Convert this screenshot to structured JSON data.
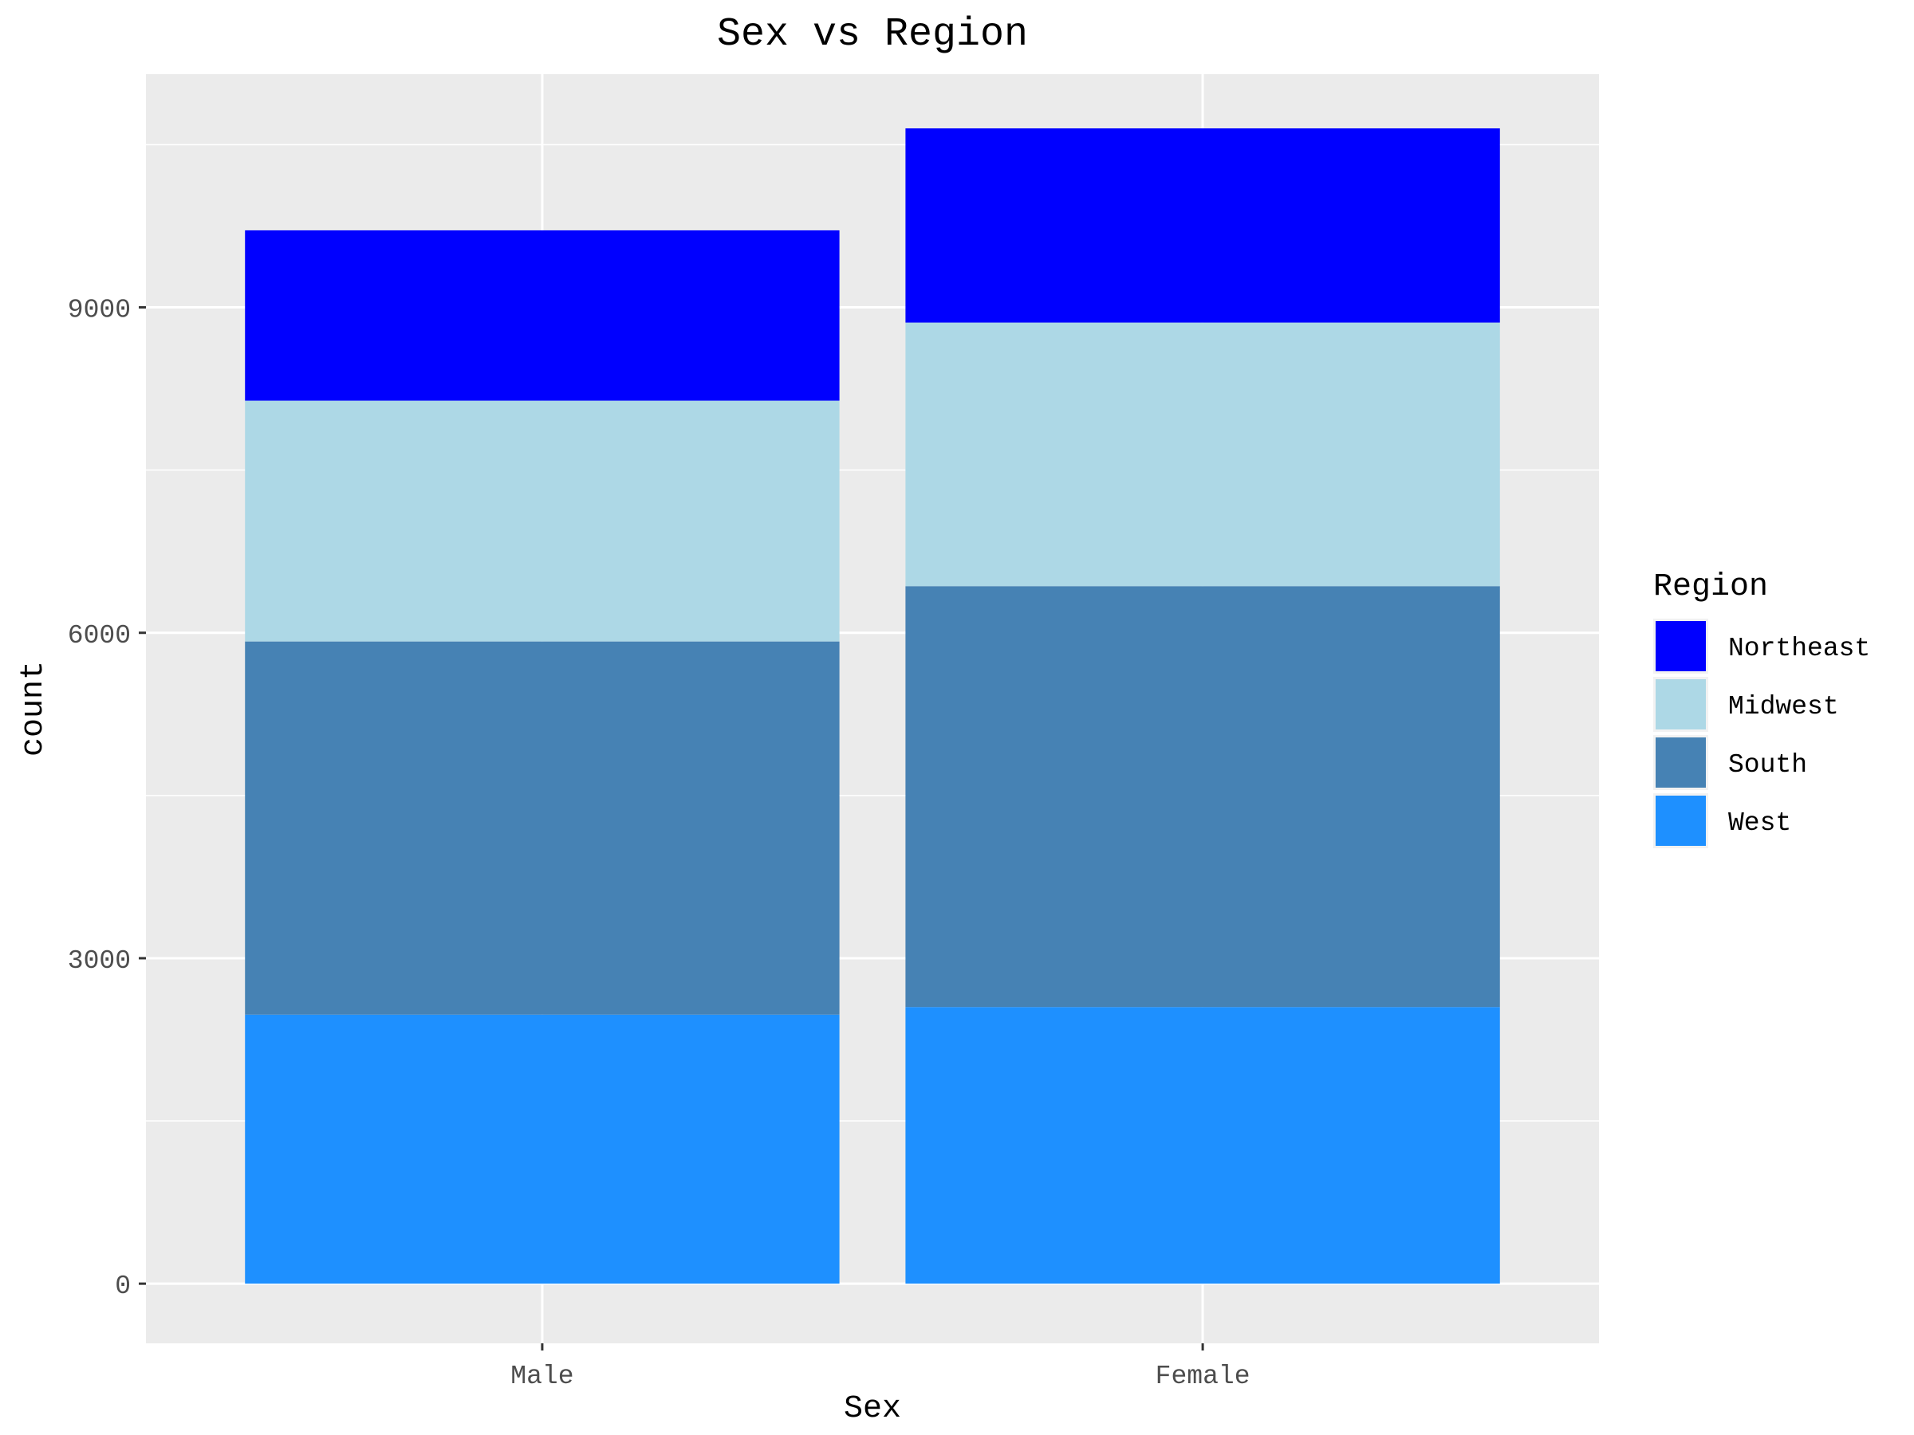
{
  "chart_data": {
    "type": "bar",
    "stacked": true,
    "title": "Sex vs Region",
    "xlabel": "Sex",
    "ylabel": "count",
    "categories": [
      "Male",
      "Female"
    ],
    "ylim": [
      -550,
      11150
    ],
    "yticks": [
      "0",
      "3000",
      "6000",
      "9000"
    ],
    "yticks_values": [
      0,
      3000,
      6000,
      9000
    ],
    "grid": true,
    "legend": {
      "title": "Region",
      "position": "right"
    },
    "series": [
      {
        "name": "West",
        "color": "#1E90FF",
        "values": [
          2480,
          2550
        ]
      },
      {
        "name": "South",
        "color": "#4682B4",
        "values": [
          3440,
          3880
        ]
      },
      {
        "name": "Midwest",
        "color": "#ADD8E6",
        "values": [
          2220,
          2430
        ]
      },
      {
        "name": "Northeast",
        "color": "#0000FF",
        "values": [
          1570,
          1790
        ]
      }
    ],
    "legend_order": [
      "Northeast",
      "Midwest",
      "South",
      "West"
    ],
    "panel_background": "#EBEBEB",
    "grid_color": "#FFFFFF"
  }
}
